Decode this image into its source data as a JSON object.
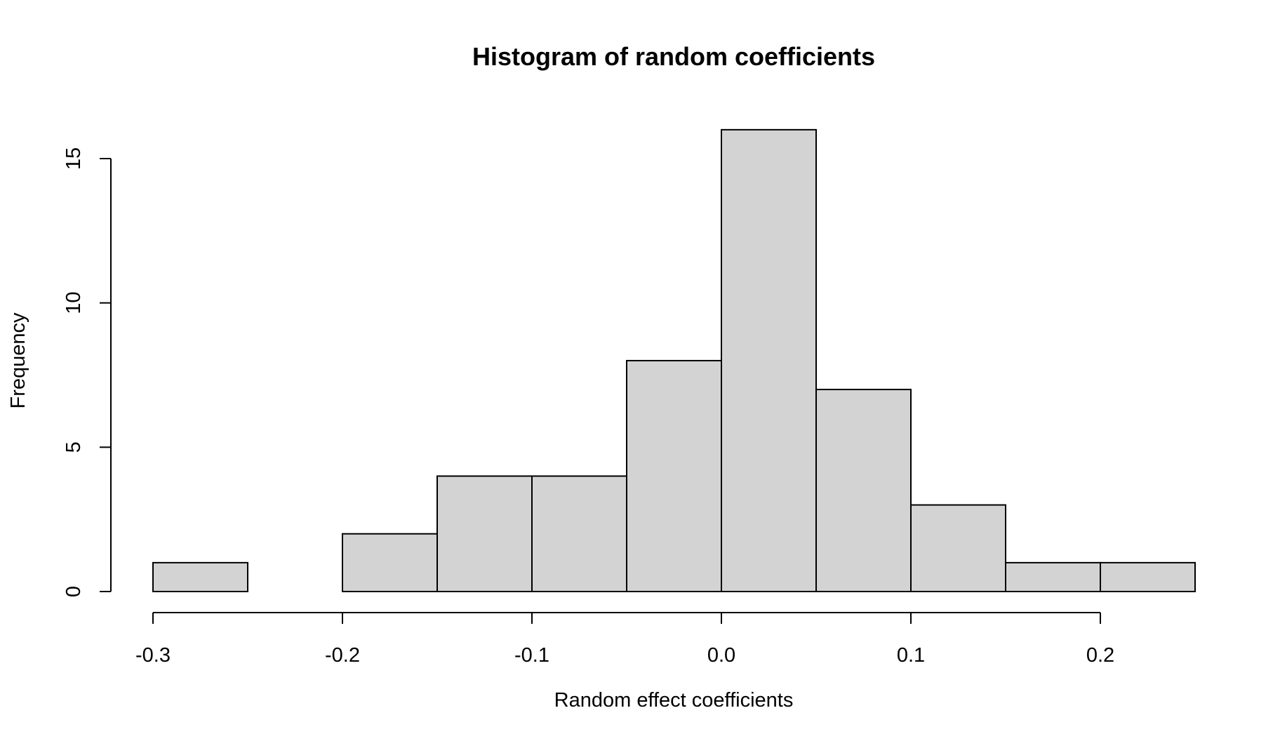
{
  "chart_data": {
    "type": "bar",
    "title": "Histogram of random coefficients",
    "xlabel": "Random effect coefficients",
    "ylabel": "Frequency",
    "bins": [
      {
        "start": -0.3,
        "end": -0.25,
        "count": 1
      },
      {
        "start": -0.25,
        "end": -0.2,
        "count": 0
      },
      {
        "start": -0.2,
        "end": -0.15,
        "count": 2
      },
      {
        "start": -0.15,
        "end": -0.1,
        "count": 4
      },
      {
        "start": -0.1,
        "end": -0.05,
        "count": 4
      },
      {
        "start": -0.05,
        "end": 0.0,
        "count": 8
      },
      {
        "start": 0.0,
        "end": 0.05,
        "count": 16
      },
      {
        "start": 0.05,
        "end": 0.1,
        "count": 7
      },
      {
        "start": 0.1,
        "end": 0.15,
        "count": 3
      },
      {
        "start": 0.15,
        "end": 0.2,
        "count": 1
      },
      {
        "start": 0.2,
        "end": 0.25,
        "count": 1
      }
    ],
    "xlim": [
      -0.3,
      0.25
    ],
    "ylim": [
      0,
      16
    ],
    "x_ticks": [
      -0.3,
      -0.2,
      -0.1,
      0.0,
      0.1,
      0.2
    ],
    "x_tick_labels": [
      "-0.3",
      "-0.2",
      "-0.1",
      "0.0",
      "0.1",
      "0.2"
    ],
    "y_ticks": [
      0,
      5,
      10,
      15
    ],
    "y_tick_labels": [
      "0",
      "5",
      "10",
      "15"
    ],
    "bar_color": "#d3d3d3",
    "grid": false,
    "legend": "none"
  }
}
